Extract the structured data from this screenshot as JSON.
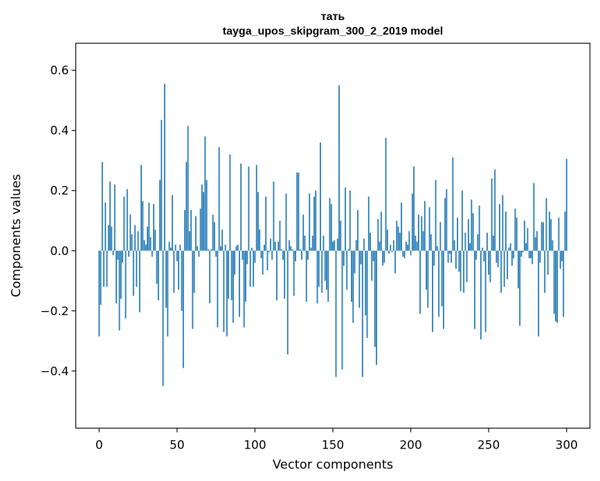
{
  "chart_data": {
    "type": "bar",
    "title_line1": "тать",
    "title_line2": "tayga_upos_skipgram_300_2_2019 model",
    "xlabel": "Vector components",
    "ylabel": "Components values",
    "xlim": [
      -15,
      315
    ],
    "ylim": [
      -0.59,
      0.69
    ],
    "xticks": [
      0,
      50,
      100,
      150,
      200,
      250,
      300
    ],
    "xtick_labels": [
      "0",
      "50",
      "100",
      "150",
      "200",
      "250",
      "300"
    ],
    "yticks": [
      -0.4,
      -0.2,
      0.0,
      0.2,
      0.4,
      0.6
    ],
    "ytick_labels": [
      "−0.4",
      "−0.2",
      "0.0",
      "0.2",
      "0.4",
      "0.6"
    ],
    "bar_color": "#1f77b4",
    "values": [
      -0.285,
      -0.18,
      0.295,
      -0.12,
      0.16,
      -0.12,
      0.085,
      0.23,
      0.08,
      -0.015,
      0.22,
      -0.175,
      -0.03,
      -0.265,
      -0.16,
      -0.04,
      0.18,
      -0.225,
      0.205,
      -0.02,
      0.12,
      0.055,
      -0.15,
      0.085,
      -0.12,
      0.065,
      -0.205,
      0.285,
      0.165,
      0.035,
      0.02,
      0.08,
      0.16,
      0.045,
      -0.02,
      0.155,
      0.07,
      -0.11,
      -0.165,
      0.235,
      0.435,
      -0.45,
      0.555,
      -0.19,
      -0.285,
      0.03,
      0.01,
      0.185,
      -0.14,
      0.02,
      -0.035,
      -0.13,
      0.02,
      -0.2,
      -0.39,
      0.135,
      0.295,
      0.415,
      0.065,
      0.135,
      -0.26,
      -0.14,
      0.115,
      0.015,
      -0.02,
      0.14,
      0.22,
      0.195,
      0.38,
      0.235,
      0.005,
      -0.175,
      0.005,
      0.12,
      0.095,
      -0.02,
      -0.255,
      0.345,
      0.015,
      0.07,
      -0.27,
      0.02,
      -0.285,
      -0.16,
      0.32,
      -0.165,
      -0.24,
      -0.08,
      0.015,
      0.02,
      -0.22,
      0.29,
      -0.03,
      -0.255,
      -0.17,
      -0.045,
      0.28,
      -0.12,
      0.01,
      -0.12,
      -0.04,
      0.285,
      0.195,
      0.07,
      -0.025,
      -0.08,
      0.02,
      0.18,
      -0.065,
      -0.005,
      0.04,
      -0.03,
      0.23,
      0.03,
      -0.165,
      0.03,
      0.1,
      0.005,
      -0.03,
      -0.16,
      0.19,
      -0.345,
      0.035,
      0.015,
      0.005,
      -0.15,
      -0.035,
      0.26,
      0.26,
      0.005,
      -0.03,
      0.12,
      0.05,
      -0.17,
      -0.03,
      0.19,
      0.01,
      0.05,
      0.18,
      0.2,
      -0.175,
      -0.12,
      0.36,
      -0.14,
      0.05,
      -0.1,
      -0.13,
      -0.17,
      0.175,
      0.155,
      0.03,
      0.035,
      -0.42,
      0.04,
      0.55,
      0.1,
      -0.395,
      -0.05,
      0.21,
      -0.13,
      0.005,
      0.2,
      -0.17,
      -0.24,
      -0.075,
      0.035,
      0.135,
      -0.19,
      -0.045,
      -0.42,
      0.04,
      -0.215,
      -0.29,
      0.18,
      0.06,
      -0.1,
      -0.035,
      -0.32,
      -0.38,
      0.105,
      0.03,
      0.13,
      -0.05,
      -0.04,
      0.375,
      0.07,
      -0.01,
      0.02,
      -0.005,
      0.035,
      -0.075,
      0.1,
      0.08,
      0.06,
      0.16,
      -0.02,
      -0.025,
      0.03,
      0.02,
      0.065,
      -0.015,
      0.19,
      0.28,
      0.05,
      0.03,
      0.12,
      -0.21,
      0.115,
      0.065,
      0.165,
      -0.13,
      -0.19,
      0.145,
      0.055,
      -0.27,
      -0.05,
      0.235,
      0.015,
      -0.22,
      0.095,
      -0.185,
      -0.26,
      0.175,
      0.205,
      -0.04,
      -0.01,
      -0.04,
      0.31,
      0.035,
      -0.06,
      0.11,
      -0.07,
      -0.135,
      0.2,
      -0.14,
      0.06,
      -0.105,
      0.105,
      0.025,
      0.17,
      0.125,
      -0.26,
      -0.03,
      0.055,
      0.15,
      -0.295,
      0.01,
      -0.035,
      -0.27,
      0.06,
      -0.08,
      -0.105,
      0.24,
      0.05,
      0.27,
      -0.04,
      -0.055,
      0.155,
      -0.14,
      0.185,
      -0.12,
      0.13,
      -0.095,
      0.01,
      0.025,
      -0.05,
      -0.025,
      0.14,
      0.11,
      -0.125,
      -0.25,
      -0.02,
      -0.005,
      0.1,
      0.025,
      0.075,
      -0.025,
      -0.025,
      -0.045,
      0.225,
      0.045,
      0.065,
      -0.285,
      -0.04,
      0.095,
      0.095,
      -0.14,
      0.175,
      -0.08,
      0.13,
      0.105,
      0.035,
      -0.21,
      -0.235,
      -0.24,
      0.11,
      -0.06,
      -0.035,
      -0.22,
      0.13,
      0.305
    ]
  }
}
